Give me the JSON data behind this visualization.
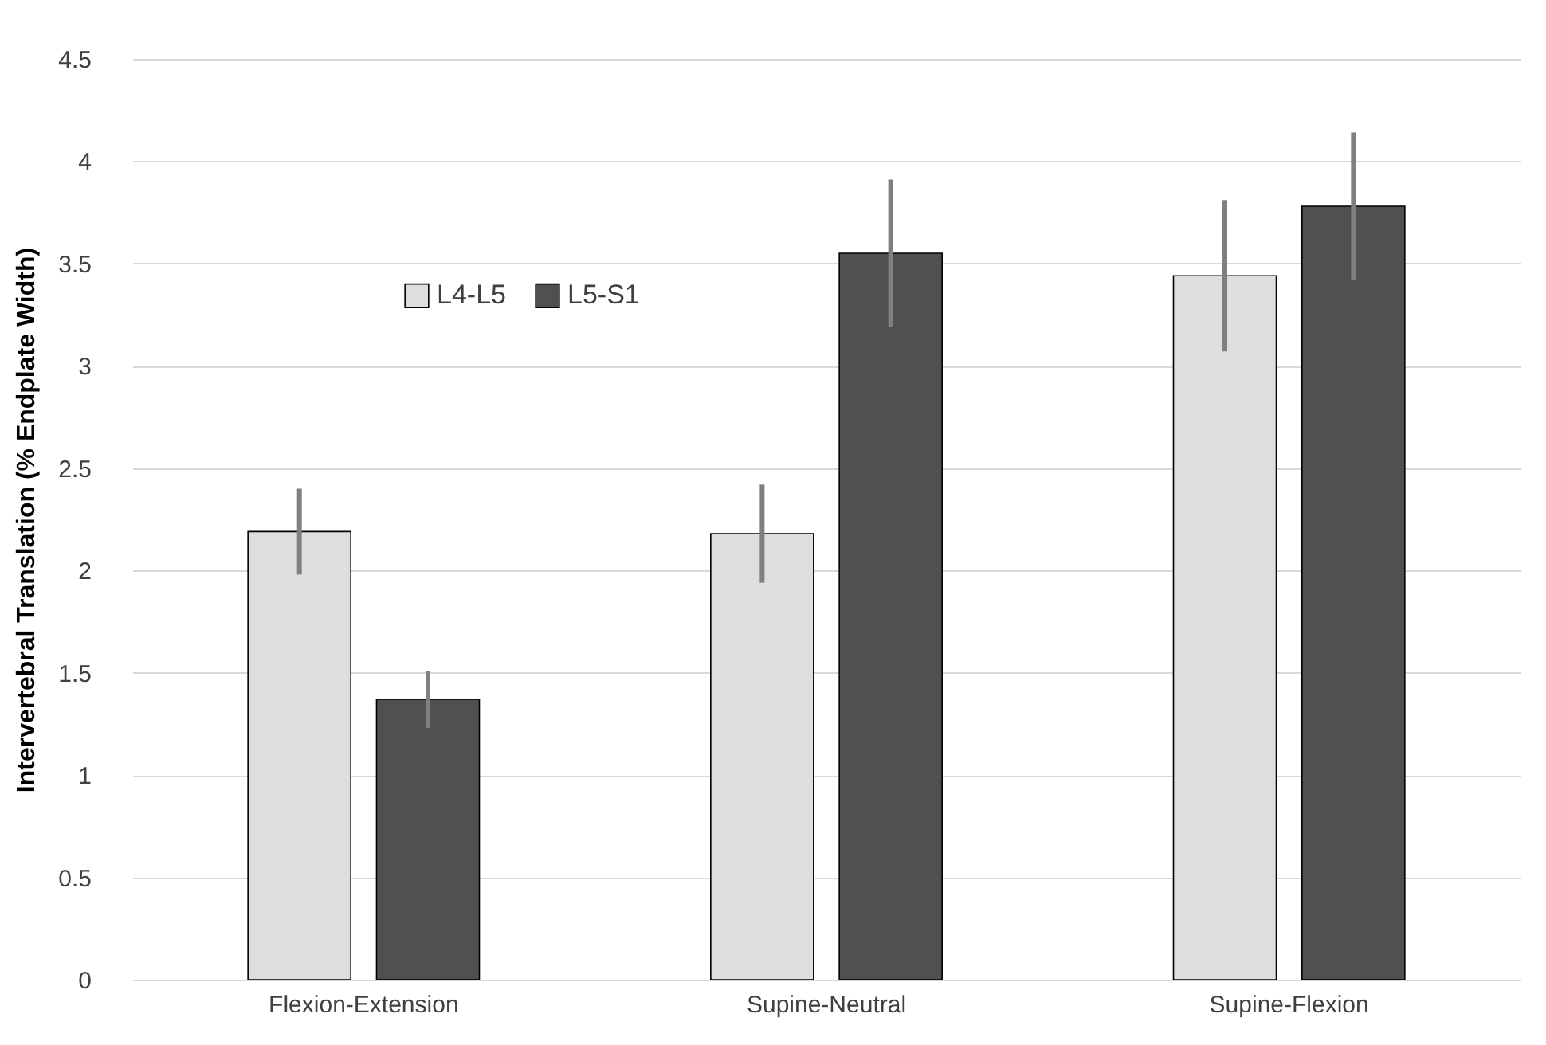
{
  "chart_data": {
    "type": "bar",
    "ylabel": "Intervertebral Translation (% Endplate Width)",
    "categories": [
      "Flexion-Extension",
      "Supine-Neutral",
      "Supine-Flexion"
    ],
    "series": [
      {
        "name": "L4-L5",
        "color": "#dedede",
        "values": [
          2.19,
          2.18,
          3.44
        ],
        "errors": [
          0.21,
          0.24,
          0.37
        ]
      },
      {
        "name": "L5-S1",
        "color": "#505050",
        "values": [
          1.37,
          3.55,
          3.78
        ],
        "errors": [
          0.14,
          0.36,
          0.36
        ]
      }
    ],
    "ylim": [
      0,
      4.5
    ],
    "yticks": [
      0,
      0.5,
      1,
      1.5,
      2,
      2.5,
      3,
      3.5,
      4,
      4.5
    ],
    "grid": "y",
    "legend": "top left"
  }
}
